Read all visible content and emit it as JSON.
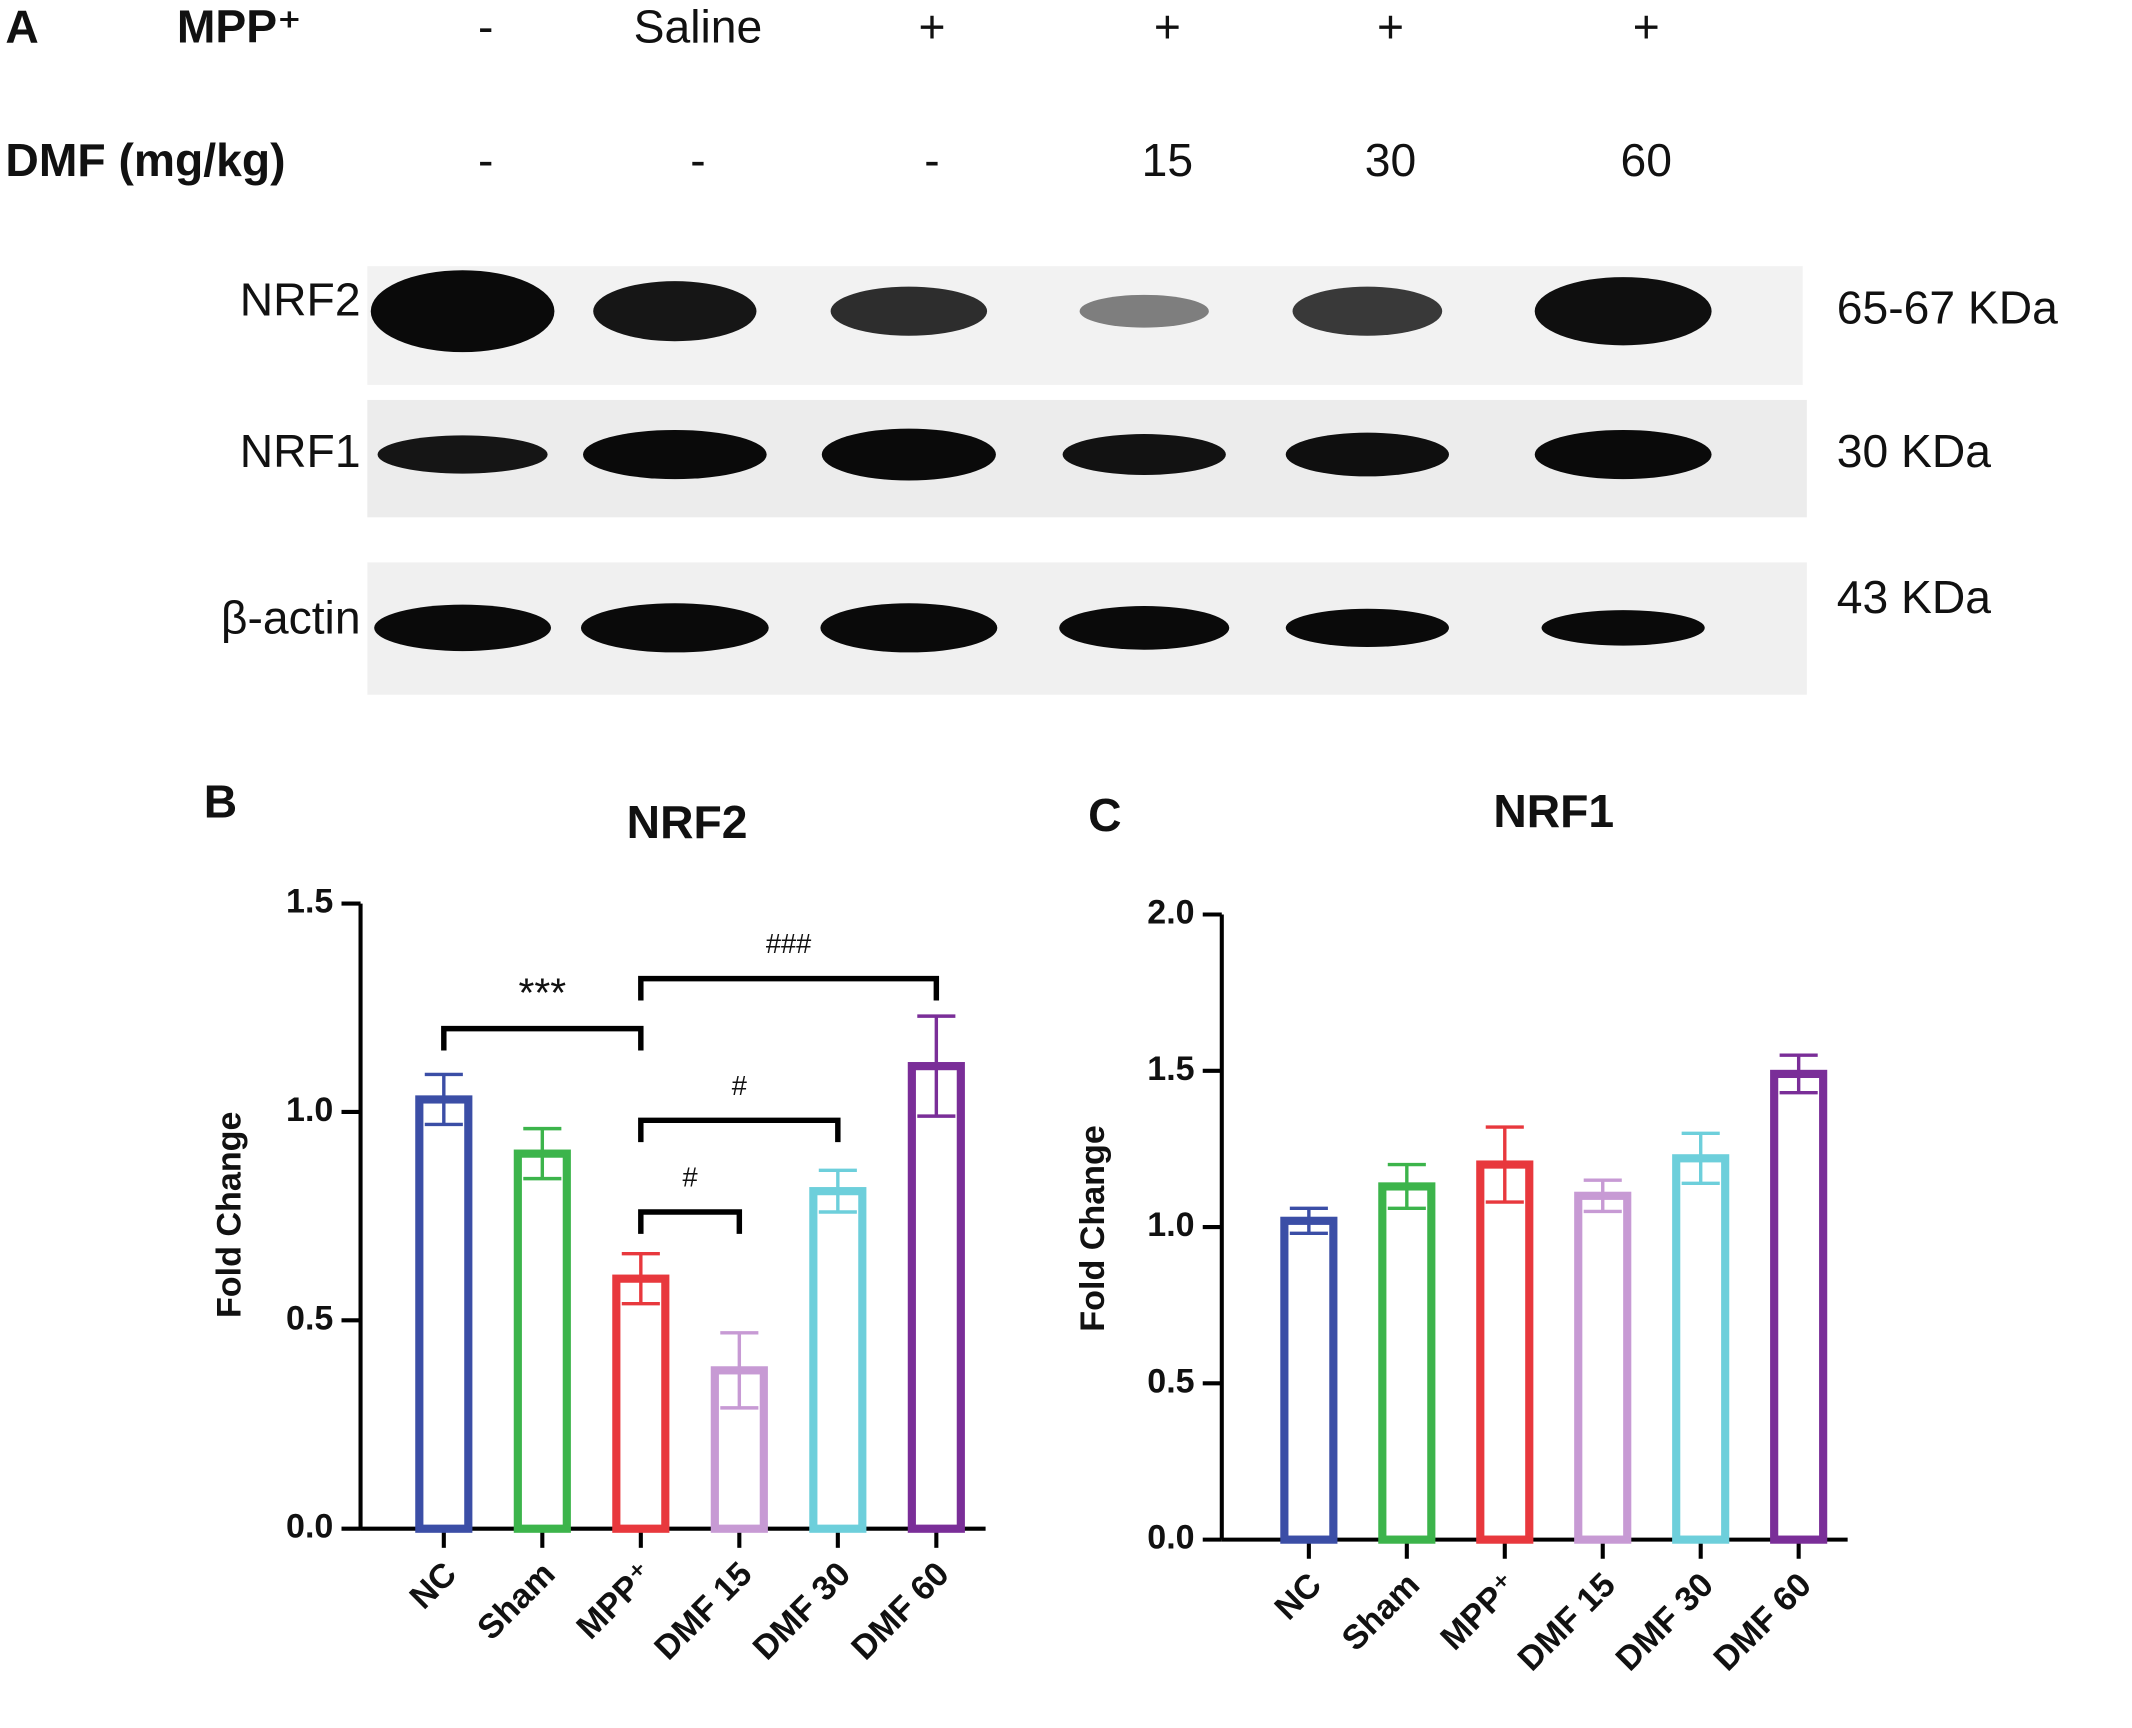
{
  "blot": {
    "label": "A",
    "header_rows": [
      {
        "label": "MPP⁺",
        "lanes": [
          "-",
          "Saline",
          "+",
          "+",
          "+",
          "+"
        ]
      },
      {
        "label": "DMF (mg/kg)",
        "lanes": [
          "-",
          "-",
          "-",
          "15",
          "30",
          "60"
        ]
      }
    ],
    "bands": [
      {
        "name": "NRF2",
        "size": "65-67 KDa"
      },
      {
        "name": "NRF1",
        "size": "30 KDa"
      },
      {
        "name": "β-actin",
        "size": "43 KDa"
      }
    ]
  },
  "chart_data": [
    {
      "type": "bar",
      "label": "B",
      "title": "NRF2",
      "ylabel": "Fold Change",
      "categories": [
        "NC",
        "Sham",
        "MPP⁺",
        "DMF 15",
        "DMF 30",
        "DMF 60"
      ],
      "values": [
        1.03,
        0.9,
        0.6,
        0.38,
        0.81,
        1.11
      ],
      "errors": [
        0.06,
        0.06,
        0.06,
        0.09,
        0.05,
        0.12
      ],
      "colors": [
        "#3b4ea6",
        "#3cb44b",
        "#e8383d",
        "#c79ad4",
        "#6dcfdb",
        "#7a2e98"
      ],
      "ylim": [
        0,
        1.5
      ],
      "yticks": [
        {
          "value": 0,
          "label": "0.0"
        },
        0.5,
        {
          "value": 1,
          "label": "1.0"
        },
        1.5
      ],
      "annotations": [
        {
          "text": "***",
          "from": "NC",
          "to": "MPP⁺",
          "y": 1.2
        },
        {
          "text": "###",
          "from": "MPP⁺",
          "to": "DMF 60",
          "y": 1.32
        },
        {
          "text": "#",
          "from": "MPP⁺",
          "to": "DMF 30",
          "y": 0.98
        },
        {
          "text": "#",
          "from": "MPP⁺",
          "to": "DMF 15",
          "y": 0.76
        }
      ]
    },
    {
      "type": "bar",
      "label": "C",
      "title": "NRF1",
      "ylabel": "Fold Change",
      "categories": [
        "NC",
        "Sham",
        "MPP⁺",
        "DMF 15",
        "DMF 30",
        "DMF 60"
      ],
      "values": [
        1.02,
        1.13,
        1.2,
        1.1,
        1.22,
        1.49
      ],
      "errors": [
        0.04,
        0.07,
        0.12,
        0.05,
        0.08,
        0.06
      ],
      "colors": [
        "#3b4ea6",
        "#3cb44b",
        "#e8383d",
        "#c79ad4",
        "#6dcfdb",
        "#7a2e98"
      ],
      "ylim": [
        0,
        2
      ],
      "yticks": [
        {
          "value": 0,
          "label": "0.0"
        },
        0.5,
        {
          "value": 1,
          "label": "1.0"
        },
        1.5,
        {
          "value": 2,
          "label": "2.0"
        }
      ]
    }
  ]
}
